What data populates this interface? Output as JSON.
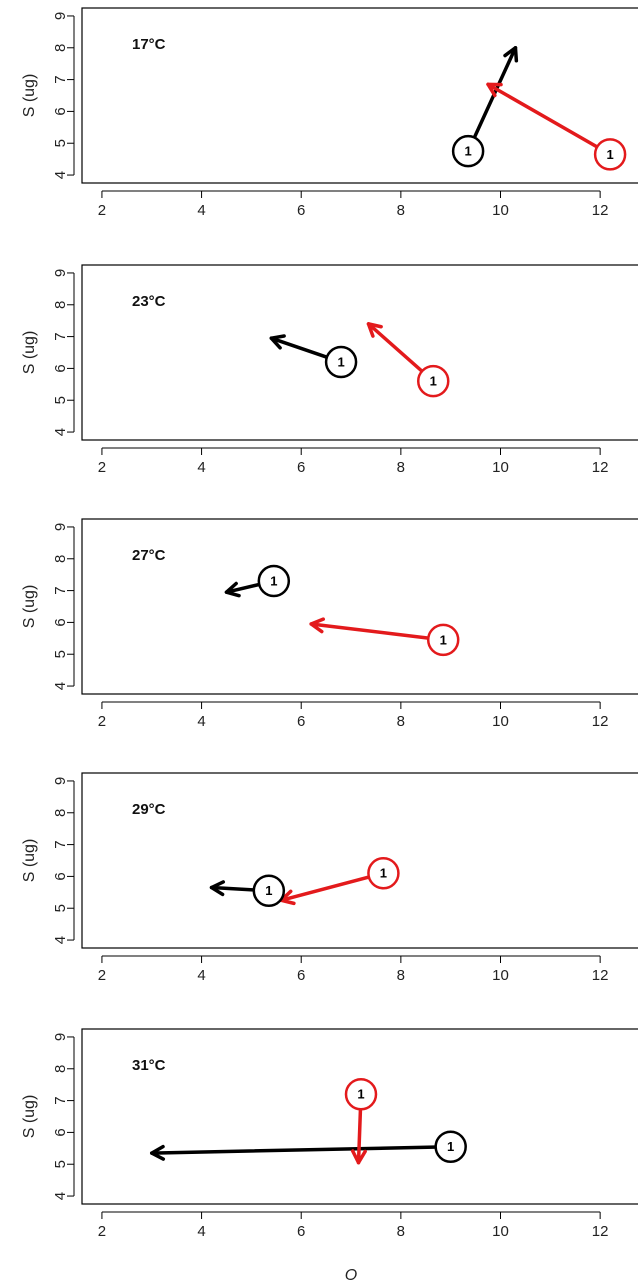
{
  "chart_data": {
    "type": "scatter",
    "xlabel": "O",
    "x_ticks": [
      2,
      4,
      6,
      8,
      10,
      12
    ],
    "y_ticks": [
      4,
      5,
      6,
      7,
      8,
      9
    ],
    "xlim": [
      1.6,
      12.8
    ],
    "ylim": [
      3.75,
      9.25
    ],
    "colors": {
      "black_series": "#000000",
      "red_series": "#e31a1c"
    },
    "panels": [
      {
        "label": "17°C",
        "ylabel": "S (ug)",
        "arrows": [
          {
            "color": "black_series",
            "marker": "1",
            "from": [
              9.35,
              4.75
            ],
            "to": [
              10.3,
              8.0
            ]
          },
          {
            "color": "red_series",
            "marker": "1",
            "from": [
              12.2,
              4.65
            ],
            "to": [
              9.75,
              6.85
            ]
          }
        ]
      },
      {
        "label": "23°C",
        "ylabel": "S (ug)",
        "arrows": [
          {
            "color": "black_series",
            "marker": "1",
            "from": [
              6.8,
              6.2
            ],
            "to": [
              5.4,
              6.95
            ]
          },
          {
            "color": "red_series",
            "marker": "1",
            "from": [
              8.65,
              5.6
            ],
            "to": [
              7.35,
              7.4
            ]
          }
        ]
      },
      {
        "label": "27°C",
        "ylabel": "S (ug)",
        "arrows": [
          {
            "color": "black_series",
            "marker": "1",
            "from": [
              5.45,
              7.3
            ],
            "to": [
              4.5,
              6.95
            ]
          },
          {
            "color": "red_series",
            "marker": "1",
            "from": [
              8.85,
              5.45
            ],
            "to": [
              6.2,
              5.95
            ]
          }
        ]
      },
      {
        "label": "29°C",
        "ylabel": "S (ug)",
        "arrows": [
          {
            "color": "black_series",
            "marker": "1",
            "from": [
              5.35,
              5.55
            ],
            "to": [
              4.2,
              5.65
            ]
          },
          {
            "color": "red_series",
            "marker": "1",
            "from": [
              7.65,
              6.1
            ],
            "to": [
              5.6,
              5.25
            ]
          }
        ]
      },
      {
        "label": "31°C",
        "ylabel": "S (ug)",
        "arrows": [
          {
            "color": "black_series",
            "marker": "1",
            "from": [
              9.0,
              5.55
            ],
            "to": [
              3.0,
              5.35
            ]
          },
          {
            "color": "red_series",
            "marker": "1",
            "from": [
              7.2,
              7.2
            ],
            "to": [
              7.15,
              5.05
            ]
          }
        ]
      }
    ]
  }
}
